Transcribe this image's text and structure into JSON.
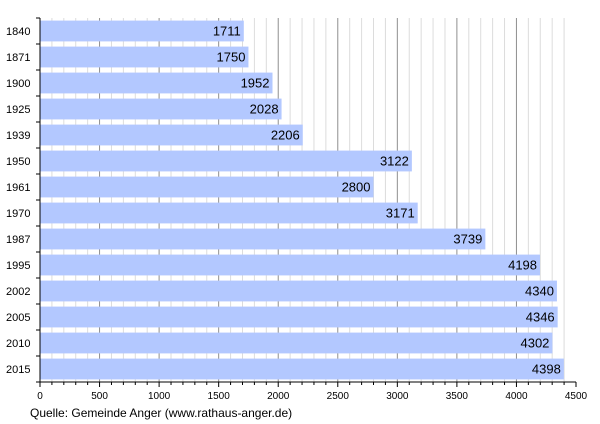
{
  "chart_data": {
    "type": "bar",
    "orientation": "horizontal",
    "title": "",
    "xlabel": "",
    "ylabel": "",
    "categories": [
      "1840",
      "1871",
      "1900",
      "1925",
      "1939",
      "1950",
      "1961",
      "1970",
      "1987",
      "1995",
      "2002",
      "2005",
      "2010",
      "2015"
    ],
    "values": [
      1711,
      1750,
      1952,
      2028,
      2206,
      3122,
      2800,
      3171,
      3739,
      4198,
      4340,
      4346,
      4302,
      4398
    ],
    "xlim": [
      0,
      4500
    ],
    "xticks": [
      "0",
      "500",
      "1000",
      "1500",
      "2000",
      "2500",
      "3000",
      "3500",
      "4000",
      "4500"
    ],
    "grid": "vertical",
    "bar_color": "#b3c8ff",
    "source": "Quelle: Gemeinde Anger (www.rathaus-anger.de)"
  }
}
